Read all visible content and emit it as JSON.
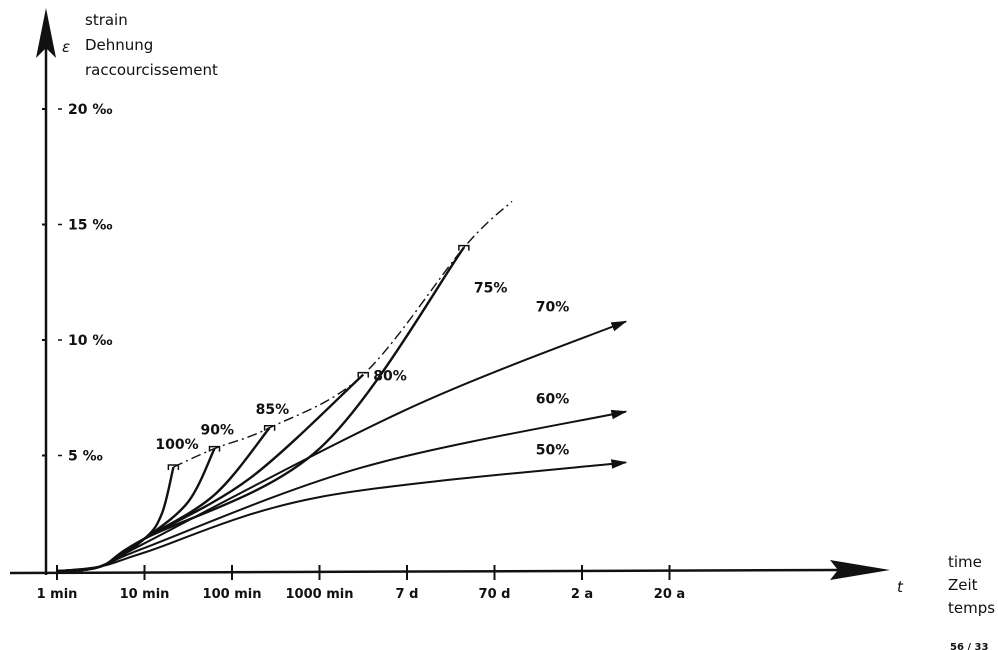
{
  "chart_data": {
    "type": "line",
    "y_axis": {
      "symbol": "ε",
      "labels": [
        "strain",
        "Dehnung",
        "raccourcissement"
      ],
      "ticks": [
        {
          "value": 5,
          "label": "5 ‰"
        },
        {
          "value": 10,
          "label": "10 ‰"
        },
        {
          "value": 15,
          "label": "15 ‰"
        },
        {
          "value": 20,
          "label": "20 ‰"
        }
      ],
      "ylim": [
        0,
        24
      ]
    },
    "x_axis": {
      "symbol": "t",
      "labels": [
        "time",
        "Zeit",
        "temps"
      ],
      "scale": "log",
      "ticks": [
        "1 min",
        "10 min",
        "100 min",
        "1000 min",
        "7 d",
        "70 d",
        "2 a",
        "20 a"
      ]
    },
    "series": [
      {
        "name": "100%",
        "ends_in_failure": true,
        "points": [
          [
            0,
            0
          ],
          [
            0.5,
            0.2
          ],
          [
            1.0,
            1.4
          ],
          [
            1.2,
            2.5
          ],
          [
            1.33,
            4.5
          ]
        ]
      },
      {
        "name": "90%",
        "ends_in_failure": true,
        "points": [
          [
            0,
            0
          ],
          [
            0.5,
            0.2
          ],
          [
            1.0,
            1.4
          ],
          [
            1.5,
            3.0
          ],
          [
            1.8,
            5.3
          ]
        ]
      },
      {
        "name": "85%",
        "ends_in_failure": true,
        "points": [
          [
            0,
            0
          ],
          [
            0.5,
            0.2
          ],
          [
            1.0,
            1.4
          ],
          [
            1.8,
            3.3
          ],
          [
            2.43,
            6.2
          ]
        ]
      },
      {
        "name": "80%",
        "ends_in_failure": true,
        "points": [
          [
            0,
            0
          ],
          [
            0.5,
            0.2
          ],
          [
            1.0,
            1.4
          ],
          [
            2.2,
            4.0
          ],
          [
            3.5,
            8.5
          ]
        ]
      },
      {
        "name": "75%",
        "ends_in_failure": true,
        "points": [
          [
            0,
            0
          ],
          [
            0.5,
            0.2
          ],
          [
            1.0,
            1.4
          ],
          [
            3.0,
            5.3
          ],
          [
            4.65,
            14.0
          ]
        ]
      },
      {
        "name": "70%",
        "ends_in_failure": false,
        "points": [
          [
            0,
            0
          ],
          [
            0.5,
            0.2
          ],
          [
            1.0,
            1.2
          ],
          [
            4.0,
            7.0
          ],
          [
            6.5,
            10.8
          ]
        ]
      },
      {
        "name": "60%",
        "ends_in_failure": false,
        "points": [
          [
            0,
            0
          ],
          [
            0.5,
            0.2
          ],
          [
            1.0,
            1.0
          ],
          [
            3.5,
            4.5
          ],
          [
            6.5,
            6.9
          ]
        ]
      },
      {
        "name": "50%",
        "ends_in_failure": false,
        "points": [
          [
            0,
            0
          ],
          [
            0.5,
            0.2
          ],
          [
            1.0,
            0.8
          ],
          [
            3.0,
            3.2
          ],
          [
            6.5,
            4.7
          ]
        ]
      }
    ],
    "failure_envelope": {
      "style": "dash-dot",
      "points": [
        [
          1.33,
          4.5
        ],
        [
          1.8,
          5.3
        ],
        [
          2.43,
          6.2
        ],
        [
          3.5,
          8.5
        ],
        [
          4.65,
          14.0
        ],
        [
          5.2,
          16.0
        ]
      ]
    }
  },
  "reference_code": "56 / 33"
}
